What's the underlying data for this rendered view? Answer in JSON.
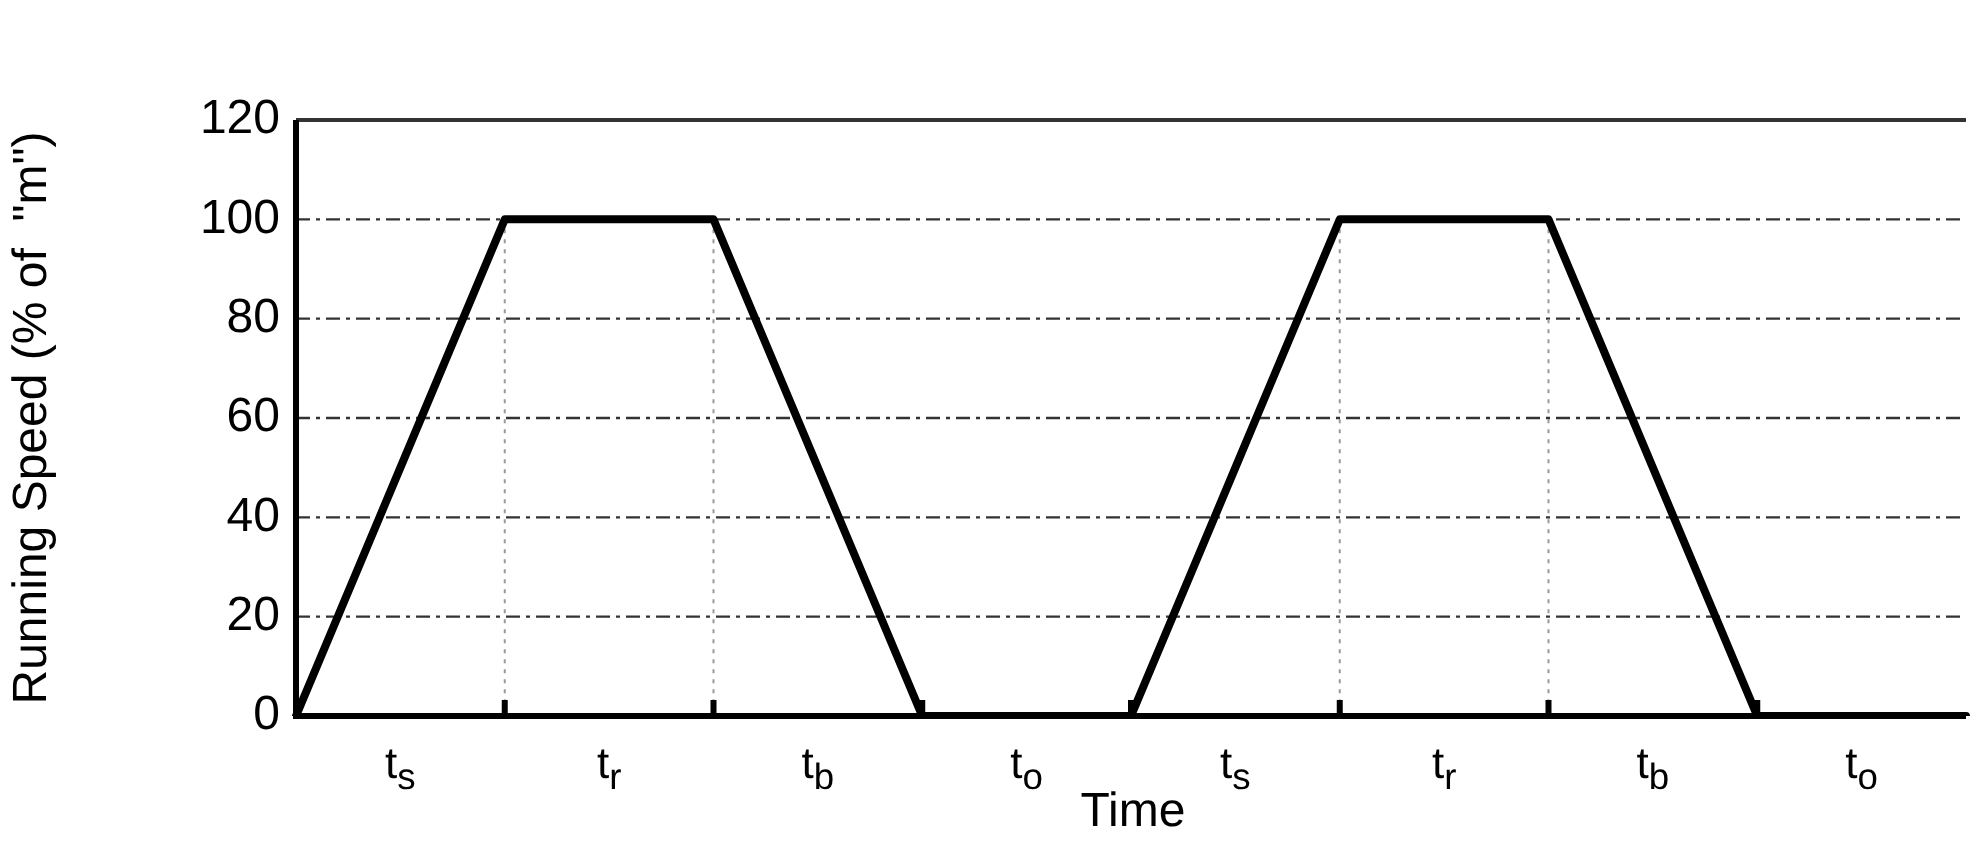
{
  "chart_data": {
    "type": "line",
    "xlabel": "Time",
    "ylabel": "Running Speed (% of  \"m\")",
    "categories": [
      null,
      "t$_{s}$",
      null,
      "t$_{r}$",
      null,
      "t$_{b}$",
      null,
      "t$_{o}$",
      null,
      "t$_{s}$",
      null,
      "t$_{r}$",
      null,
      "t$_{b}$",
      null,
      "t$_{o}$",
      null
    ],
    "series": [
      {
        "color": "#000000",
        "values": [
          0,
          50,
          100,
          100,
          100,
          50,
          0,
          0,
          0,
          50,
          100,
          100,
          100,
          50,
          0,
          0,
          0
        ]
      }
    ],
    "ylim": [
      0,
      120
    ],
    "yticks": [
      0,
      20,
      40,
      60,
      80,
      100,
      120
    ],
    "grid": true,
    "legend": false,
    "marker": "none",
    "line_style": "solid"
  }
}
